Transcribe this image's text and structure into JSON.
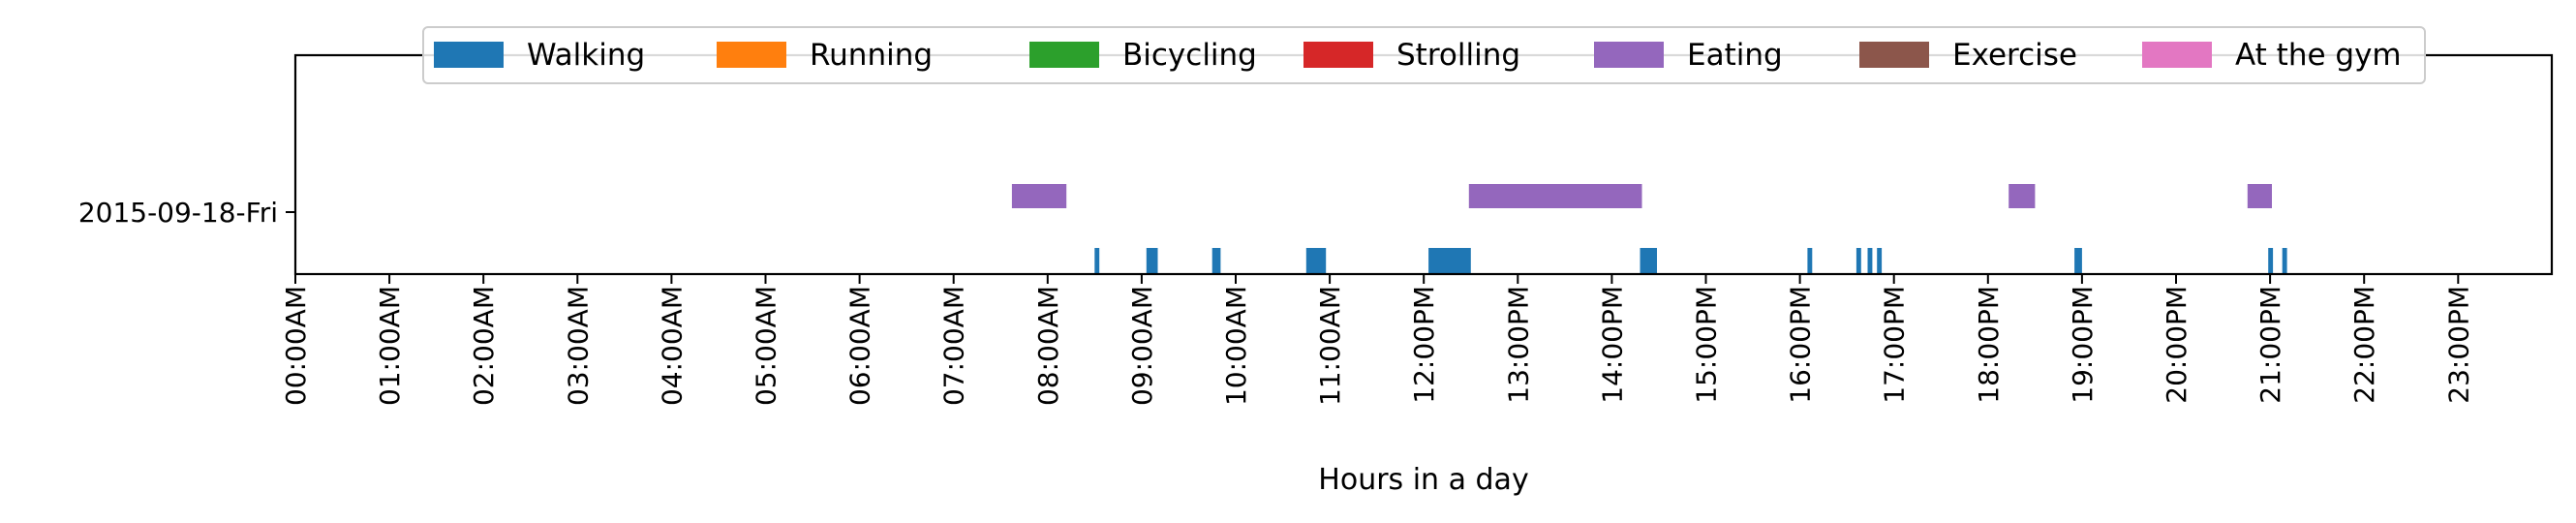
{
  "chart_data": {
    "type": "timeline",
    "title": "",
    "xlabel": "Hours in a day",
    "ylabel": "",
    "xlim": [
      0,
      24
    ],
    "grid": false,
    "legend_placement": "top-center",
    "rows": [
      "2015-09-18-Fri"
    ],
    "x_ticks": [
      {
        "hour": 0,
        "label": "00:00AM"
      },
      {
        "hour": 1,
        "label": "01:00AM"
      },
      {
        "hour": 2,
        "label": "02:00AM"
      },
      {
        "hour": 3,
        "label": "03:00AM"
      },
      {
        "hour": 4,
        "label": "04:00AM"
      },
      {
        "hour": 5,
        "label": "05:00AM"
      },
      {
        "hour": 6,
        "label": "06:00AM"
      },
      {
        "hour": 7,
        "label": "07:00AM"
      },
      {
        "hour": 8,
        "label": "08:00AM"
      },
      {
        "hour": 9,
        "label": "09:00AM"
      },
      {
        "hour": 10,
        "label": "10:00AM"
      },
      {
        "hour": 11,
        "label": "11:00AM"
      },
      {
        "hour": 12,
        "label": "12:00PM"
      },
      {
        "hour": 13,
        "label": "13:00PM"
      },
      {
        "hour": 14,
        "label": "14:00PM"
      },
      {
        "hour": 15,
        "label": "15:00PM"
      },
      {
        "hour": 16,
        "label": "16:00PM"
      },
      {
        "hour": 17,
        "label": "17:00PM"
      },
      {
        "hour": 18,
        "label": "18:00PM"
      },
      {
        "hour": 19,
        "label": "19:00PM"
      },
      {
        "hour": 20,
        "label": "20:00PM"
      },
      {
        "hour": 21,
        "label": "21:00PM"
      },
      {
        "hour": 22,
        "label": "22:00PM"
      },
      {
        "hour": 23,
        "label": "23:00PM"
      }
    ],
    "series": [
      {
        "name": "Walking",
        "color": "#1f77b4",
        "lane": "lower",
        "segments": [
          [
            8.5,
            8.55
          ],
          [
            9.05,
            9.17
          ],
          [
            9.75,
            9.84
          ],
          [
            10.75,
            10.96
          ],
          [
            12.05,
            12.5
          ],
          [
            14.3,
            14.48
          ],
          [
            16.08,
            16.13
          ],
          [
            16.6,
            16.65
          ],
          [
            16.72,
            16.77
          ],
          [
            16.82,
            16.87
          ],
          [
            18.92,
            19.0
          ],
          [
            20.98,
            21.03
          ],
          [
            21.13,
            21.18
          ]
        ]
      },
      {
        "name": "Running",
        "color": "#ff7f0e",
        "lane": "lower",
        "segments": []
      },
      {
        "name": "Bicycling",
        "color": "#2ca02c",
        "lane": "lower",
        "segments": []
      },
      {
        "name": "Strolling",
        "color": "#d62728",
        "lane": "lower",
        "segments": []
      },
      {
        "name": "Eating",
        "color": "#9467bd",
        "lane": "upper",
        "segments": [
          [
            7.62,
            8.2
          ],
          [
            12.48,
            14.32
          ],
          [
            18.22,
            18.5
          ],
          [
            20.76,
            21.02
          ]
        ]
      },
      {
        "name": "Exercise",
        "color": "#8c564b",
        "lane": "lower",
        "segments": []
      },
      {
        "name": "At the gym",
        "color": "#e377c2",
        "lane": "lower",
        "segments": []
      }
    ]
  }
}
